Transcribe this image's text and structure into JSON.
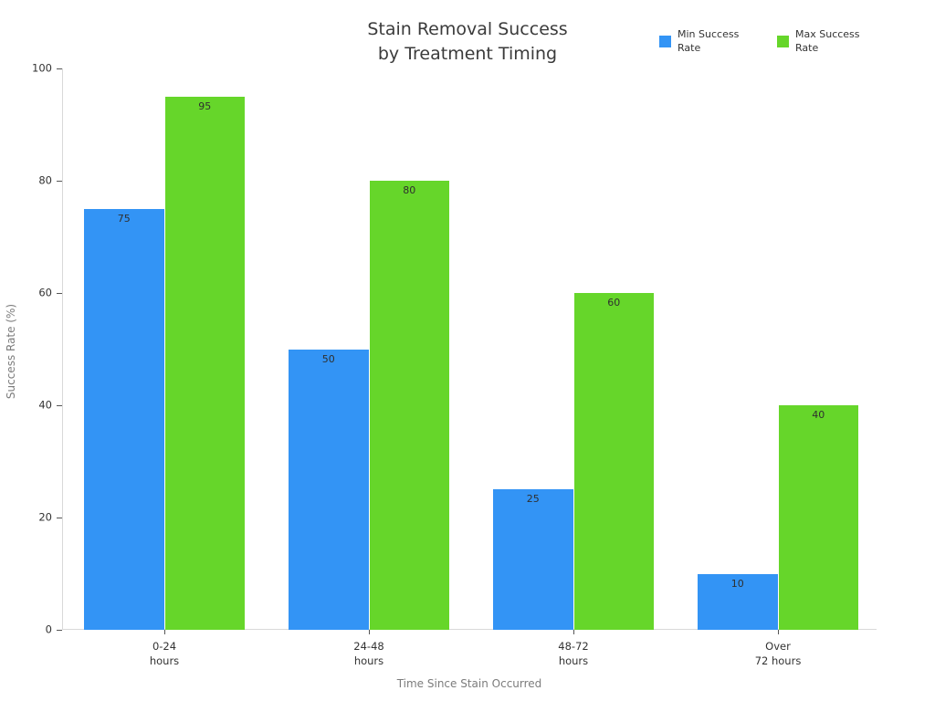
{
  "chart_data": {
    "type": "bar",
    "title": "Stain Removal Success by Treatment Timing",
    "title_lines": [
      "Stain Removal Success",
      "by Treatment Timing"
    ],
    "categories": [
      "0-24\nhours",
      "24-48\nhours",
      "48-72\nhours",
      "Over\n72 hours"
    ],
    "series": [
      {
        "name": "Min Success Rate",
        "color": "#3394f5",
        "values": [
          75,
          50,
          25,
          10
        ]
      },
      {
        "name": "Max Success Rate",
        "color": "#66d62a",
        "values": [
          95,
          80,
          60,
          40
        ]
      }
    ],
    "xlabel": "Time Since Stain Occurred",
    "ylabel": "Success Rate (%)",
    "ylim": [
      0,
      100
    ],
    "yticks": [
      0,
      20,
      40,
      60,
      80,
      100
    ],
    "grid": false,
    "legend_position": "top-right",
    "bar_value_labels_shown": true
  }
}
